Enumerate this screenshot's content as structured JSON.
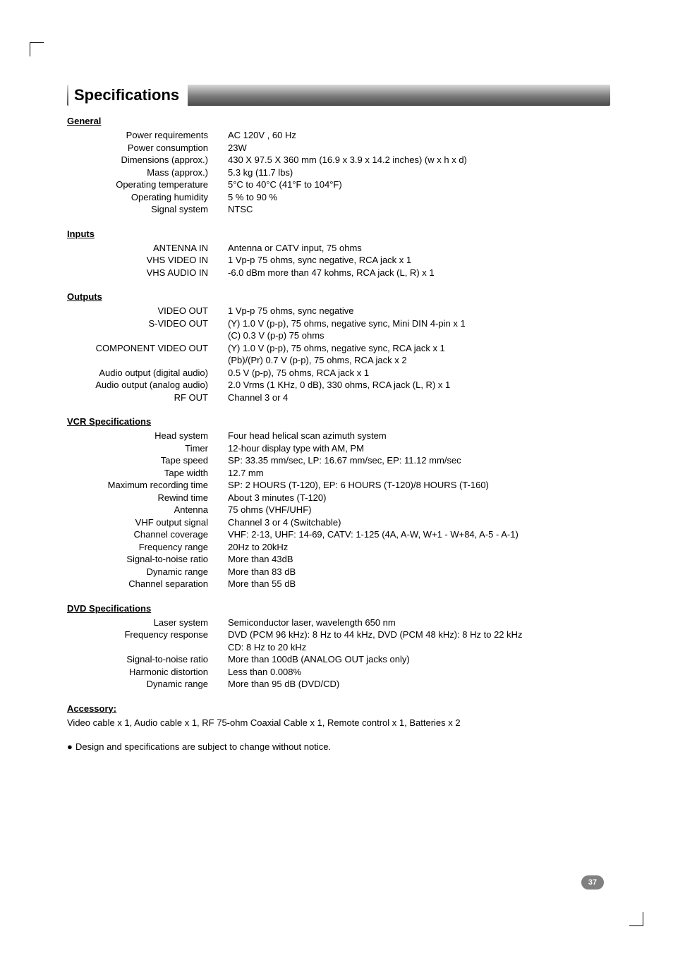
{
  "title": "Specifications",
  "page_number": "37",
  "sections": {
    "general": {
      "heading": "General",
      "rows": [
        {
          "label": "Power requirements",
          "value": "AC 120V , 60 Hz"
        },
        {
          "label": "Power consumption",
          "value": "23W"
        },
        {
          "label": "Dimensions (approx.)",
          "value": "430 X 97.5 X 360 mm (16.9 x 3.9 x 14.2 inches) (w x h x d)"
        },
        {
          "label": "Mass (approx.)",
          "value": "5.3 kg (11.7 lbs)"
        },
        {
          "label": "Operating temperature",
          "value": "5°C to 40°C (41°F to 104°F)"
        },
        {
          "label": "Operating humidity",
          "value": "5 % to 90 %"
        },
        {
          "label": "Signal system",
          "value": "NTSC"
        }
      ]
    },
    "inputs": {
      "heading": "Inputs",
      "rows": [
        {
          "label": "ANTENNA IN",
          "value": "Antenna or CATV input, 75 ohms"
        },
        {
          "label": "VHS VIDEO IN",
          "value": "1 Vp-p 75 ohms, sync negative, RCA jack x 1"
        },
        {
          "label": "VHS AUDIO IN",
          "value": "-6.0 dBm more than 47 kohms, RCA jack (L, R) x 1"
        }
      ]
    },
    "outputs": {
      "heading": "Outputs",
      "rows": [
        {
          "label": "VIDEO OUT",
          "value": "1 Vp-p 75 ohms, sync negative"
        },
        {
          "label": "S-VIDEO OUT",
          "value": "(Y) 1.0 V (p-p), 75 ohms, negative sync, Mini DIN 4-pin x 1"
        },
        {
          "label": "",
          "value": "(C) 0.3 V (p-p) 75 ohms"
        },
        {
          "label": "COMPONENT VIDEO OUT",
          "value": "(Y) 1.0 V (p-p), 75 ohms, negative sync, RCA jack x 1"
        },
        {
          "label": "",
          "value": "(Pb)/(Pr) 0.7 V (p-p), 75 ohms, RCA jack x 2"
        },
        {
          "label": "Audio output (digital audio)",
          "value": "0.5 V (p-p), 75 ohms, RCA jack x 1"
        },
        {
          "label": "Audio output (analog audio)",
          "value": "2.0 Vrms (1 KHz, 0 dB), 330 ohms, RCA jack (L, R) x 1"
        },
        {
          "label": "RF OUT",
          "value": "Channel 3 or 4"
        }
      ]
    },
    "vcr": {
      "heading": "VCR Specifications",
      "rows": [
        {
          "label": "Head system",
          "value": "Four head helical scan azimuth system"
        },
        {
          "label": "Timer",
          "value": "12-hour display type with AM, PM"
        },
        {
          "label": "Tape speed",
          "value": "SP: 33.35 mm/sec, LP: 16.67 mm/sec, EP: 11.12 mm/sec"
        },
        {
          "label": "Tape width",
          "value": "12.7 mm"
        },
        {
          "label": "Maximum recording time",
          "value": "SP: 2 HOURS (T-120), EP: 6 HOURS (T-120)/8 HOURS (T-160)"
        },
        {
          "label": "Rewind time",
          "value": "About 3 minutes (T-120)"
        },
        {
          "label": "Antenna",
          "value": "75 ohms (VHF/UHF)"
        },
        {
          "label": "VHF output signal",
          "value": "Channel 3 or 4 (Switchable)"
        },
        {
          "label": "Channel coverage",
          "value": "VHF: 2-13, UHF: 14-69, CATV: 1-125 (4A, A-W, W+1 - W+84, A-5 - A-1)"
        },
        {
          "label": "Frequency range",
          "value": "20Hz to 20kHz"
        },
        {
          "label": "Signal-to-noise ratio",
          "value": "More than 43dB"
        },
        {
          "label": "Dynamic range",
          "value": "More than 83 dB"
        },
        {
          "label": "Channel separation",
          "value": "More than 55 dB"
        }
      ]
    },
    "dvd": {
      "heading": "DVD Specifications",
      "rows": [
        {
          "label": "Laser system",
          "value": "Semiconductor laser, wavelength 650 nm"
        },
        {
          "label": "Frequency response",
          "value": "DVD (PCM 96 kHz): 8 Hz to 44 kHz, DVD (PCM 48 kHz): 8 Hz to 22 kHz"
        },
        {
          "label": "",
          "value": "CD: 8 Hz to 20 kHz"
        },
        {
          "label": "Signal-to-noise ratio",
          "value": "More than 100dB (ANALOG OUT jacks only)"
        },
        {
          "label": "Harmonic distortion",
          "value": "Less than 0.008%"
        },
        {
          "label": "Dynamic range",
          "value": "More than 95 dB (DVD/CD)"
        }
      ]
    },
    "accessory": {
      "heading": "Accessory:",
      "text": "Video cable x 1, Audio cable x 1, RF 75-ohm Coaxial Cable x 1, Remote control x 1, Batteries x 2"
    }
  },
  "note": "Design and specifications are subject to change without notice."
}
